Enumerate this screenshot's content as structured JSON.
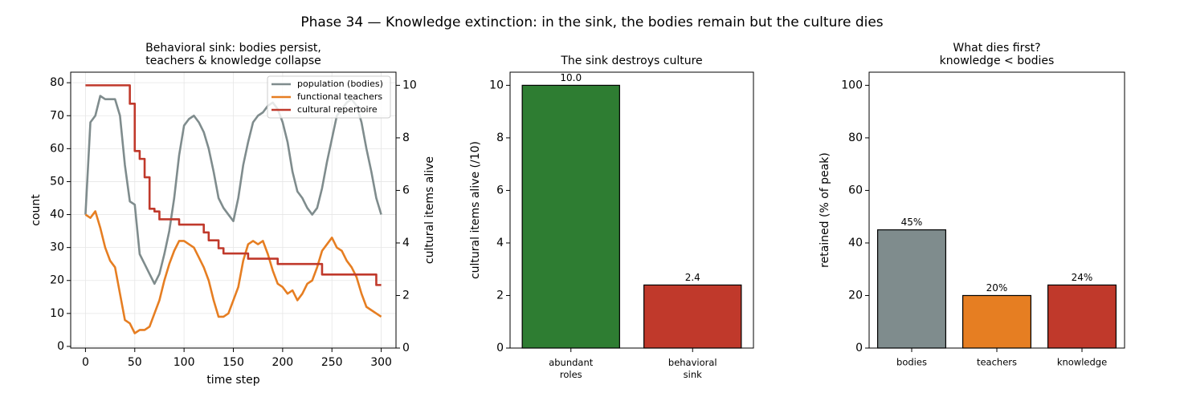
{
  "title": "Phase 34 — Knowledge extinction: in the sink, the bodies remain but the culture dies",
  "chart_data": [
    {
      "type": "line",
      "title": "Behavioral sink: bodies persist,\nteachers & knowledge collapse",
      "x_label": "time step",
      "y_label": "count",
      "y2_label": "cultural items alive",
      "y2_label_color": "#c0392b",
      "x": [
        0,
        5,
        10,
        15,
        20,
        25,
        30,
        35,
        40,
        45,
        50,
        55,
        60,
        65,
        70,
        75,
        80,
        85,
        90,
        95,
        100,
        105,
        110,
        115,
        120,
        125,
        130,
        135,
        140,
        145,
        150,
        155,
        160,
        165,
        170,
        175,
        180,
        185,
        190,
        195,
        200,
        205,
        210,
        215,
        220,
        225,
        230,
        235,
        240,
        245,
        250,
        255,
        260,
        265,
        270,
        275,
        280,
        285,
        290,
        295,
        300
      ],
      "series": [
        {
          "name": "population (bodies)",
          "color": "#7f8c8d",
          "values": [
            40,
            68,
            70,
            76,
            75,
            75,
            75,
            70,
            55,
            44,
            43,
            28,
            25,
            22,
            19,
            22,
            28,
            35,
            45,
            58,
            67,
            69,
            70,
            68,
            65,
            60,
            53,
            45,
            42,
            40,
            38,
            45,
            55,
            62,
            68,
            70,
            71,
            73,
            74,
            72,
            68,
            62,
            53,
            47,
            45,
            42,
            40,
            42,
            48,
            56,
            63,
            70,
            72,
            74,
            75,
            73,
            68,
            60,
            53,
            45,
            40
          ]
        },
        {
          "name": "functional teachers",
          "color": "#e67e22",
          "values": [
            40,
            39,
            41,
            36,
            30,
            26,
            24,
            16,
            8,
            7,
            4,
            5,
            5,
            6,
            10,
            14,
            20,
            25,
            29,
            32,
            32,
            31,
            30,
            27,
            24,
            20,
            14,
            9,
            9,
            10,
            14,
            18,
            26,
            31,
            32,
            31,
            32,
            28,
            23,
            19,
            18,
            16,
            17,
            14,
            16,
            19,
            20,
            24,
            29,
            31,
            33,
            30,
            29,
            26,
            24,
            21,
            16,
            12,
            11,
            10,
            9
          ]
        },
        {
          "name": "cultural repertoire",
          "color": "#c0392b",
          "axis": "y2",
          "drawstyle": "steps-post",
          "values": [
            10,
            10,
            10,
            10,
            10,
            10,
            10,
            10,
            10,
            9.3,
            7.5,
            7.2,
            6.5,
            5.3,
            5.2,
            4.9,
            4.9,
            4.9,
            4.9,
            4.7,
            4.7,
            4.7,
            4.7,
            4.7,
            4.4,
            4.1,
            4.1,
            3.8,
            3.6,
            3.6,
            3.6,
            3.6,
            3.6,
            3.4,
            3.4,
            3.4,
            3.4,
            3.4,
            3.4,
            3.2,
            3.2,
            3.2,
            3.2,
            3.2,
            3.2,
            3.2,
            3.2,
            3.2,
            2.8,
            2.8,
            2.8,
            2.8,
            2.8,
            2.8,
            2.8,
            2.8,
            2.8,
            2.8,
            2.8,
            2.4,
            2.4
          ]
        }
      ],
      "xlim": [
        -15,
        315
      ],
      "xticks": [
        0,
        50,
        100,
        150,
        200,
        250,
        300
      ],
      "ylim": [
        -0.5,
        83.2
      ],
      "yticks": [
        0,
        10,
        20,
        30,
        40,
        50,
        60,
        70,
        80
      ],
      "y2lim": [
        0,
        10.5
      ],
      "y2ticks": [
        0,
        2,
        4,
        6,
        8,
        10
      ],
      "grid": true,
      "legend": "upper right"
    },
    {
      "type": "bar",
      "title": "The sink destroys culture",
      "y_label": "cultural items alive (/10)",
      "categories": [
        "abundant\nroles",
        "behavioral\nsink"
      ],
      "values": [
        10.0,
        2.4
      ],
      "value_labels": [
        "10.0",
        "2.4"
      ],
      "colors": [
        "#2e7d32",
        "#c0392b"
      ],
      "ylim": [
        0,
        10.5
      ],
      "yticks": [
        0,
        2,
        4,
        6,
        8,
        10
      ]
    },
    {
      "type": "bar",
      "title": "What dies first?\nknowledge < bodies",
      "y_label": "retained (% of peak)",
      "categories": [
        "bodies",
        "teachers",
        "knowledge"
      ],
      "values": [
        45,
        20,
        24
      ],
      "value_labels": [
        "45%",
        "20%",
        "24%"
      ],
      "colors": [
        "#7f8c8d",
        "#e67e22",
        "#c0392b"
      ],
      "ylim": [
        0,
        105
      ],
      "yticks": [
        0,
        20,
        40,
        60,
        80,
        100
      ]
    }
  ]
}
